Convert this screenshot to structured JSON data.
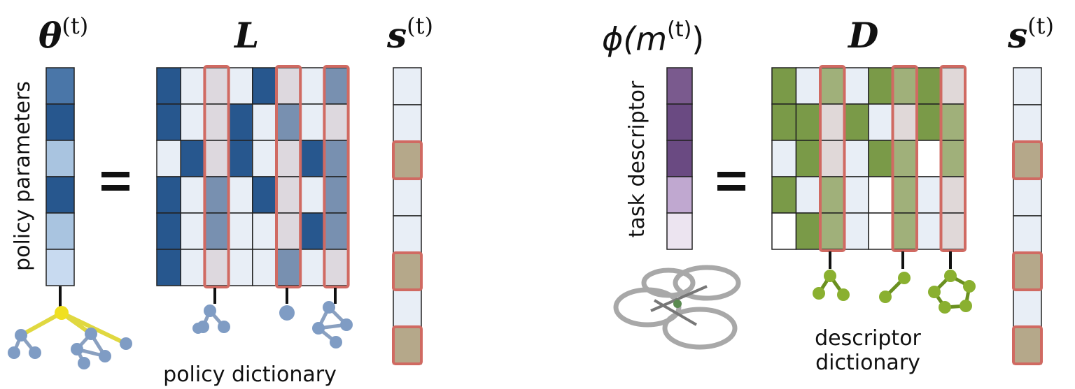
{
  "left": {
    "theta": {
      "base": "θ",
      "sup": "(t)"
    },
    "L": "L",
    "s": {
      "base": "s",
      "sup": "(t)"
    },
    "param_label": "policy parameters",
    "dict_label": "policy dictionary"
  },
  "right": {
    "phi": {
      "base": "ϕ(m",
      "sup": "(t)",
      "close": ")"
    },
    "D": "D",
    "s": {
      "base": "s",
      "sup": "(t)"
    },
    "desc_label": "task descriptor",
    "dict_label": [
      "descriptor",
      "dictionary"
    ]
  }
}
